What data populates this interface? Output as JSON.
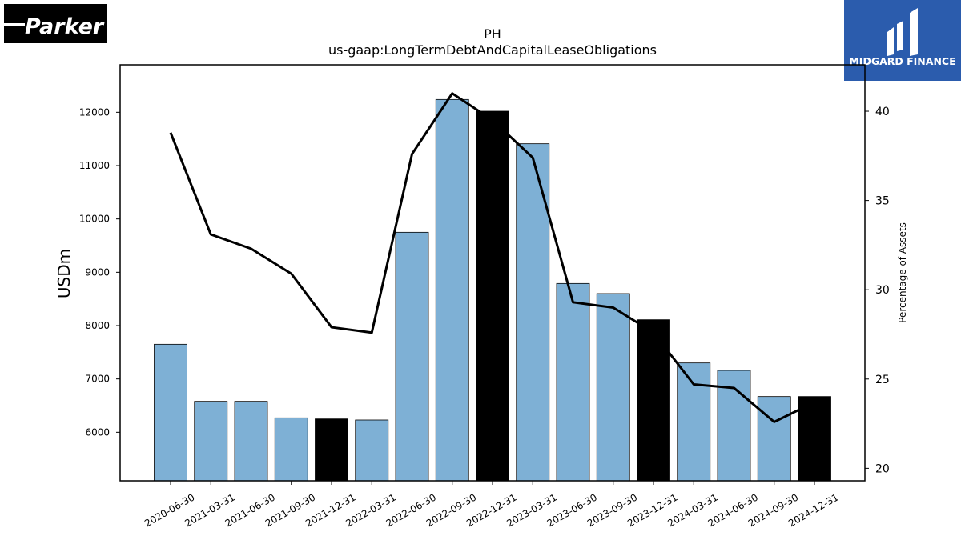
{
  "logos": {
    "left_text": "Parker",
    "right_text": "MIDGARD FINANCE"
  },
  "chart_data": {
    "type": "bar",
    "title": "PH",
    "subtitle": "us-gaap:LongTermDebtAndCapitalLeaseObligations",
    "ylabel": "USDm",
    "y2label": "Percentage of Assets",
    "categories": [
      "2020-06-30",
      "2021-03-31",
      "2021-06-30",
      "2021-09-30",
      "2021-12-31",
      "2022-03-31",
      "2022-06-30",
      "2022-09-30",
      "2022-12-31",
      "2023-03-31",
      "2023-06-30",
      "2023-09-30",
      "2023-12-31",
      "2024-03-31",
      "2024-06-30",
      "2024-09-30",
      "2024-12-31"
    ],
    "series": [
      {
        "values": [
          7650,
          6580,
          6580,
          6270,
          6250,
          6230,
          9750,
          12240,
          12020,
          11410,
          8790,
          8600,
          8110,
          7300,
          7160,
          6670,
          6670
        ],
        "highlight": [
          false,
          false,
          false,
          false,
          true,
          false,
          false,
          false,
          true,
          false,
          false,
          false,
          true,
          false,
          false,
          false,
          true
        ],
        "color": "#7eb0d5",
        "highlight_color": "#000000",
        "axis": "left"
      },
      {
        "values": [
          38.8,
          33.1,
          32.3,
          30.9,
          27.9,
          27.6,
          37.6,
          41.0,
          39.5,
          37.4,
          29.3,
          29.0,
          27.6,
          24.7,
          24.5,
          22.6,
          23.7
        ],
        "color": "#000000",
        "axis": "right"
      }
    ],
    "ylim": [
      5090,
      12890
    ],
    "y2lim": [
      19.3,
      42.6
    ],
    "yticks": [
      6000,
      7000,
      8000,
      9000,
      10000,
      11000,
      12000
    ],
    "y2ticks": [
      20,
      25,
      30,
      35,
      40
    ],
    "grid": false,
    "legend": "none"
  }
}
